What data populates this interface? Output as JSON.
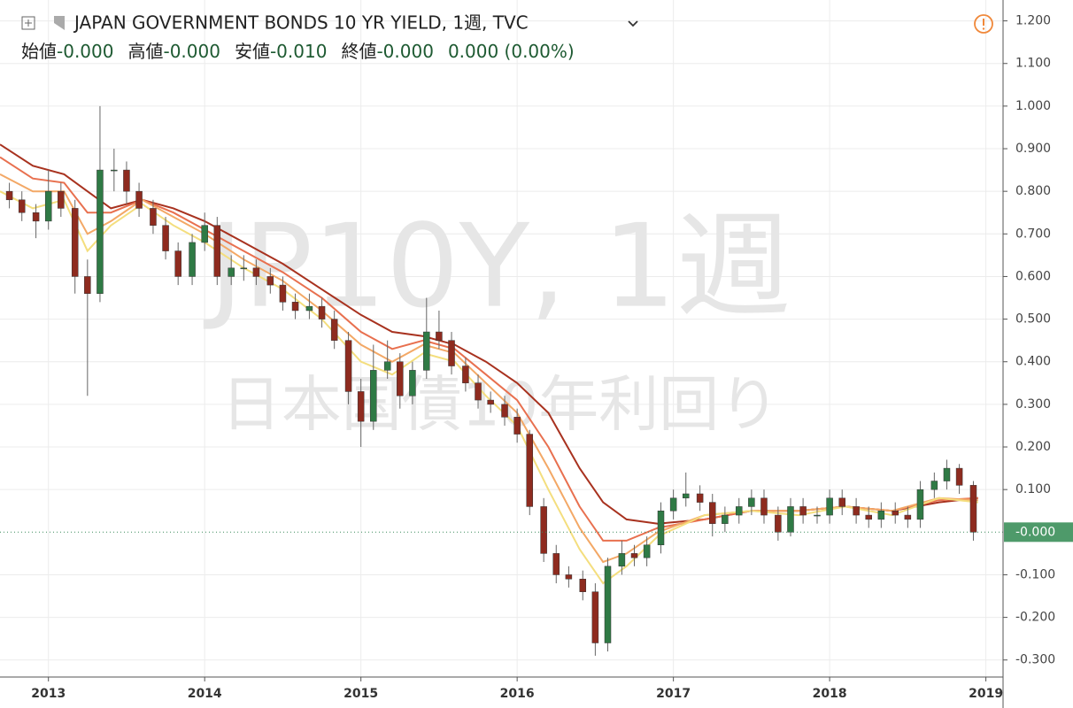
{
  "chart_data": {
    "type": "candlestick",
    "title": "JAPAN GOVERNMENT BONDS 10 YR YIELD, 1週, TVC",
    "watermark": "JP10Y, 1週",
    "watermark_subtitle": "日本国債10年利回り",
    "ohlc_header": [
      {
        "label": "始値",
        "value": "-0.000"
      },
      {
        "label": "高値",
        "value": "-0.000"
      },
      {
        "label": "安値",
        "value": "-0.010"
      },
      {
        "label": "終値",
        "value": "-0.000"
      }
    ],
    "change": "0.000 (0.00%)",
    "last_price": {
      "value": 0,
      "label": "-0.000"
    },
    "up_color": "#2f7a45",
    "down_color": "#8e2b1f",
    "grid": true,
    "xlim": [
      2012.69,
      2019.11
    ],
    "xticks": [
      2013,
      2014,
      2015,
      2016,
      2017,
      2018,
      2019
    ],
    "ylim": [
      -0.34,
      1.249
    ],
    "yticks": [
      {
        "value": 1.2,
        "label": "1.200"
      },
      {
        "value": 1.1,
        "label": "1.100"
      },
      {
        "value": 1.0,
        "label": "1.000"
      },
      {
        "value": 0.9,
        "label": "0.900"
      },
      {
        "value": 0.8,
        "label": "0.800"
      },
      {
        "value": 0.7,
        "label": "0.700"
      },
      {
        "value": 0.6,
        "label": "0.600"
      },
      {
        "value": 0.5,
        "label": "0.500"
      },
      {
        "value": 0.4,
        "label": "0.400"
      },
      {
        "value": 0.3,
        "label": "0.300"
      },
      {
        "value": 0.2,
        "label": "0.200"
      },
      {
        "value": 0.1,
        "label": "0.100"
      },
      {
        "value": -0.1,
        "label": "-0.100"
      },
      {
        "value": -0.2,
        "label": "-0.200"
      },
      {
        "value": -0.3,
        "label": "-0.300"
      }
    ],
    "x": [
      2012.75,
      2012.83,
      2012.92,
      2013.0,
      2013.08,
      2013.17,
      2013.25,
      2013.33,
      2013.42,
      2013.5,
      2013.58,
      2013.67,
      2013.75,
      2013.83,
      2013.92,
      2014.0,
      2014.08,
      2014.17,
      2014.25,
      2014.33,
      2014.42,
      2014.5,
      2014.58,
      2014.67,
      2014.75,
      2014.83,
      2014.92,
      2015.0,
      2015.08,
      2015.17,
      2015.25,
      2015.33,
      2015.42,
      2015.5,
      2015.58,
      2015.67,
      2015.75,
      2015.83,
      2015.92,
      2016.0,
      2016.08,
      2016.17,
      2016.25,
      2016.33,
      2016.42,
      2016.5,
      2016.58,
      2016.67,
      2016.75,
      2016.83,
      2016.92,
      2017.0,
      2017.08,
      2017.17,
      2017.25,
      2017.33,
      2017.42,
      2017.5,
      2017.58,
      2017.67,
      2017.75,
      2017.83,
      2017.92,
      2018.0,
      2018.08,
      2018.17,
      2018.25,
      2018.33,
      2018.42,
      2018.5,
      2018.58,
      2018.67,
      2018.75,
      2018.83,
      2018.92
    ],
    "open": [
      0.8,
      0.78,
      0.75,
      0.73,
      0.8,
      0.76,
      0.6,
      0.56,
      0.85,
      0.85,
      0.8,
      0.76,
      0.72,
      0.66,
      0.6,
      0.68,
      0.72,
      0.6,
      0.62,
      0.62,
      0.6,
      0.58,
      0.54,
      0.52,
      0.53,
      0.5,
      0.45,
      0.33,
      0.26,
      0.38,
      0.4,
      0.32,
      0.38,
      0.47,
      0.45,
      0.39,
      0.35,
      0.31,
      0.3,
      0.27,
      0.23,
      0.06,
      -0.05,
      -0.1,
      -0.11,
      -0.14,
      -0.26,
      -0.08,
      -0.05,
      -0.06,
      -0.03,
      0.05,
      0.08,
      0.09,
      0.07,
      0.02,
      0.04,
      0.06,
      0.08,
      0.04,
      0.0,
      0.06,
      0.04,
      0.04,
      0.08,
      0.06,
      0.04,
      0.03,
      0.05,
      0.04,
      0.03,
      0.1,
      0.12,
      0.15,
      0.11
    ],
    "high": [
      0.82,
      0.8,
      0.77,
      0.85,
      0.82,
      0.78,
      0.64,
      1.0,
      0.9,
      0.87,
      0.82,
      0.78,
      0.74,
      0.68,
      0.7,
      0.75,
      0.74,
      0.65,
      0.65,
      0.64,
      0.62,
      0.6,
      0.56,
      0.56,
      0.55,
      0.52,
      0.47,
      0.36,
      0.44,
      0.45,
      0.42,
      0.4,
      0.55,
      0.52,
      0.47,
      0.41,
      0.37,
      0.33,
      0.32,
      0.29,
      0.24,
      0.08,
      -0.03,
      -0.08,
      -0.09,
      -0.12,
      -0.06,
      -0.02,
      -0.03,
      -0.01,
      0.07,
      0.1,
      0.14,
      0.11,
      0.09,
      0.06,
      0.08,
      0.1,
      0.1,
      0.06,
      0.08,
      0.08,
      0.06,
      0.1,
      0.1,
      0.08,
      0.06,
      0.07,
      0.07,
      0.06,
      0.12,
      0.14,
      0.17,
      0.16,
      0.12
    ],
    "low": [
      0.76,
      0.73,
      0.69,
      0.71,
      0.74,
      0.56,
      0.32,
      0.54,
      0.8,
      0.77,
      0.74,
      0.7,
      0.64,
      0.58,
      0.58,
      0.66,
      0.58,
      0.58,
      0.59,
      0.58,
      0.56,
      0.52,
      0.5,
      0.5,
      0.48,
      0.43,
      0.3,
      0.2,
      0.24,
      0.36,
      0.29,
      0.3,
      0.36,
      0.43,
      0.37,
      0.33,
      0.29,
      0.28,
      0.25,
      0.21,
      0.04,
      -0.07,
      -0.12,
      -0.13,
      -0.16,
      -0.29,
      -0.28,
      -0.1,
      -0.08,
      -0.08,
      -0.05,
      0.03,
      0.06,
      0.05,
      -0.01,
      0.0,
      0.02,
      0.04,
      0.02,
      -0.02,
      -0.01,
      0.02,
      0.02,
      0.02,
      0.04,
      0.02,
      0.01,
      0.01,
      0.02,
      0.01,
      0.01,
      0.08,
      0.1,
      0.09,
      -0.02
    ],
    "close": [
      0.78,
      0.75,
      0.73,
      0.8,
      0.76,
      0.6,
      0.56,
      0.85,
      0.85,
      0.8,
      0.76,
      0.72,
      0.66,
      0.6,
      0.68,
      0.72,
      0.6,
      0.62,
      0.62,
      0.6,
      0.58,
      0.54,
      0.52,
      0.53,
      0.5,
      0.45,
      0.33,
      0.26,
      0.38,
      0.4,
      0.32,
      0.38,
      0.47,
      0.45,
      0.39,
      0.35,
      0.31,
      0.3,
      0.27,
      0.23,
      0.06,
      -0.05,
      -0.1,
      -0.11,
      -0.14,
      -0.26,
      -0.08,
      -0.05,
      -0.06,
      -0.03,
      0.05,
      0.08,
      0.09,
      0.07,
      0.02,
      0.04,
      0.06,
      0.08,
      0.04,
      0.0,
      0.06,
      0.04,
      0.04,
      0.08,
      0.06,
      0.04,
      0.03,
      0.05,
      0.04,
      0.03,
      0.1,
      0.12,
      0.15,
      0.11,
      0.0
    ],
    "ribbon_x": [
      2012.69,
      2012.9,
      2013.1,
      2013.25,
      2013.4,
      2013.6,
      2013.8,
      2014.0,
      2014.25,
      2014.5,
      2014.75,
      2015.0,
      2015.2,
      2015.4,
      2015.6,
      2015.8,
      2016.0,
      2016.2,
      2016.4,
      2016.55,
      2016.7,
      2016.9,
      2017.2,
      2017.5,
      2017.8,
      2018.1,
      2018.4,
      2018.7,
      2018.95
    ],
    "ribbon": [
      {
        "color": "#a8321f",
        "values": [
          0.91,
          0.86,
          0.84,
          0.8,
          0.76,
          0.78,
          0.76,
          0.73,
          0.68,
          0.63,
          0.57,
          0.51,
          0.47,
          0.46,
          0.44,
          0.4,
          0.35,
          0.28,
          0.15,
          0.07,
          0.03,
          0.02,
          0.03,
          0.05,
          0.05,
          0.06,
          0.05,
          0.07,
          0.08
        ]
      },
      {
        "color": "#e8704f",
        "values": [
          0.88,
          0.83,
          0.82,
          0.75,
          0.75,
          0.78,
          0.75,
          0.71,
          0.66,
          0.61,
          0.55,
          0.47,
          0.43,
          0.45,
          0.43,
          0.37,
          0.31,
          0.2,
          0.06,
          -0.02,
          -0.02,
          0.01,
          0.03,
          0.05,
          0.05,
          0.06,
          0.05,
          0.075,
          0.08
        ]
      },
      {
        "color": "#f3a866",
        "values": [
          0.84,
          0.8,
          0.8,
          0.7,
          0.73,
          0.78,
          0.74,
          0.7,
          0.64,
          0.59,
          0.52,
          0.44,
          0.4,
          0.44,
          0.42,
          0.35,
          0.28,
          0.15,
          0.01,
          -0.07,
          -0.05,
          0.0,
          0.04,
          0.05,
          0.05,
          0.06,
          0.05,
          0.08,
          0.075
        ]
      },
      {
        "color": "#f4de7e",
        "values": [
          0.8,
          0.76,
          0.78,
          0.66,
          0.72,
          0.77,
          0.72,
          0.68,
          0.62,
          0.57,
          0.5,
          0.4,
          0.37,
          0.42,
          0.4,
          0.32,
          0.25,
          0.1,
          -0.04,
          -0.12,
          -0.08,
          -0.01,
          0.04,
          0.05,
          0.04,
          0.06,
          0.04,
          0.08,
          0.07
        ]
      }
    ]
  }
}
